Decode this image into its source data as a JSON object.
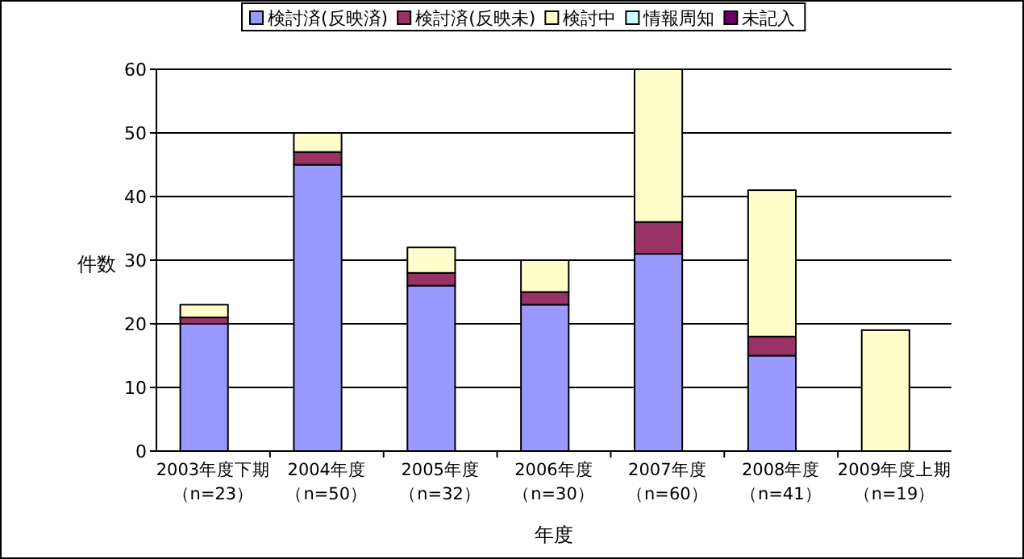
{
  "chart_data": {
    "type": "bar",
    "stacked": true,
    "xlabel": "年度",
    "ylabel": "件数",
    "categories": [
      "2003年度下期（n=23）",
      "2004年度（n=50）",
      "2005年度（n=32）",
      "2006年度（n=30）",
      "2007年度（n=60）",
      "2008年度（n=41）",
      "2009年度上期（n=19）"
    ],
    "series": [
      {
        "name": "検討済(反映済)",
        "color": "#9999ff",
        "values": [
          20,
          45,
          26,
          23,
          31,
          15,
          0
        ]
      },
      {
        "name": "検討済(反映未)",
        "color": "#993366",
        "values": [
          1,
          2,
          2,
          2,
          5,
          3,
          0
        ]
      },
      {
        "name": "検討中",
        "color": "#ffffcc",
        "values": [
          2,
          3,
          4,
          5,
          24,
          23,
          19
        ]
      },
      {
        "name": "情報周知",
        "color": "#ccffff",
        "values": [
          0,
          0,
          0,
          0,
          0,
          0,
          0
        ]
      },
      {
        "name": "未記入",
        "color": "#660066",
        "values": [
          0,
          0,
          0,
          0,
          0,
          0,
          0
        ]
      }
    ],
    "ylim": [
      0,
      60
    ],
    "yticks": [
      0,
      10,
      20,
      30,
      40,
      50,
      60
    ],
    "grid": "y",
    "legend": "top"
  }
}
